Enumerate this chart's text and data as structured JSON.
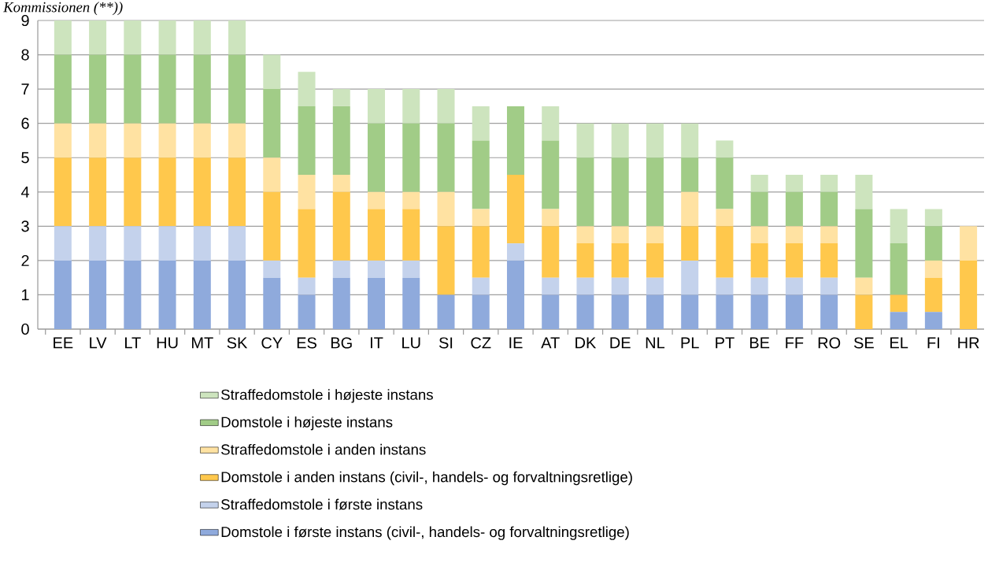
{
  "chart_data": {
    "type": "bar",
    "stacked": true,
    "categories": [
      "EE",
      "LV",
      "LT",
      "HU",
      "MT",
      "SK",
      "CY",
      "ES",
      "BG",
      "IT",
      "LU",
      "SI",
      "CZ",
      "IE",
      "AT",
      "DK",
      "DE",
      "NL",
      "PL",
      "PT",
      "BE",
      "FF",
      "RO",
      "SE",
      "EL",
      "FI",
      "HR"
    ],
    "series": [
      {
        "name": "Domstole i første instans (civil-, handels- og forvaltningsretlige)",
        "color": "#8faadc",
        "values": [
          2,
          2,
          2,
          2,
          2,
          2,
          1.5,
          1,
          1.5,
          1.5,
          1.5,
          1,
          1,
          2,
          1,
          1,
          1,
          1,
          1,
          1,
          1,
          1,
          1,
          0,
          0.5,
          0.5,
          0
        ]
      },
      {
        "name": "Straffedomstole i første instans",
        "color": "#c4d2ec",
        "values": [
          1,
          1,
          1,
          1,
          1,
          1,
          0.5,
          0.5,
          0.5,
          0.5,
          0.5,
          0,
          0.5,
          0.5,
          0.5,
          0.5,
          0.5,
          0.5,
          1,
          0.5,
          0.5,
          0.5,
          0.5,
          0,
          0,
          0,
          0
        ]
      },
      {
        "name": "Domstole i anden instans (civil-, handels- og forvaltningsretlige)",
        "color": "#ffc84c",
        "values": [
          2,
          2,
          2,
          2,
          2,
          2,
          2,
          2,
          2,
          1.5,
          1.5,
          2,
          1.5,
          2,
          1.5,
          1,
          1,
          1,
          1,
          1.5,
          1,
          1,
          1,
          1,
          0.5,
          1,
          2
        ]
      },
      {
        "name": "Straffedomstole i anden instans",
        "color": "#ffe2a2",
        "values": [
          1,
          1,
          1,
          1,
          1,
          1,
          1,
          1,
          0.5,
          0.5,
          0.5,
          1,
          0.5,
          0,
          0.5,
          0.5,
          0.5,
          0.5,
          1,
          0.5,
          0.5,
          0.5,
          0.5,
          0.5,
          0,
          0.5,
          1
        ]
      },
      {
        "name": "Domstole i højeste instans",
        "color": "#a1cc87",
        "values": [
          2,
          2,
          2,
          2,
          2,
          2,
          2,
          2,
          2,
          2,
          2,
          2,
          2,
          2,
          2,
          2,
          2,
          2,
          1,
          1.5,
          1,
          1,
          1,
          2,
          1.5,
          1,
          0
        ]
      },
      {
        "name": "Straffedomstole i højeste instans",
        "color": "#cde4be",
        "values": [
          1,
          1,
          1,
          1,
          1,
          1,
          1,
          1,
          0.5,
          1,
          1,
          1,
          1,
          0,
          1,
          1,
          1,
          1,
          1,
          0.5,
          0.5,
          0.5,
          0.5,
          1,
          1,
          0.5,
          0
        ]
      }
    ],
    "ylim": [
      0,
      9
    ],
    "yticks": [
      0,
      1,
      2,
      3,
      4,
      5,
      6,
      7,
      8,
      9
    ],
    "grid": "y",
    "legend": "bottom",
    "annotations": [
      "Kommissionen (**))"
    ]
  }
}
